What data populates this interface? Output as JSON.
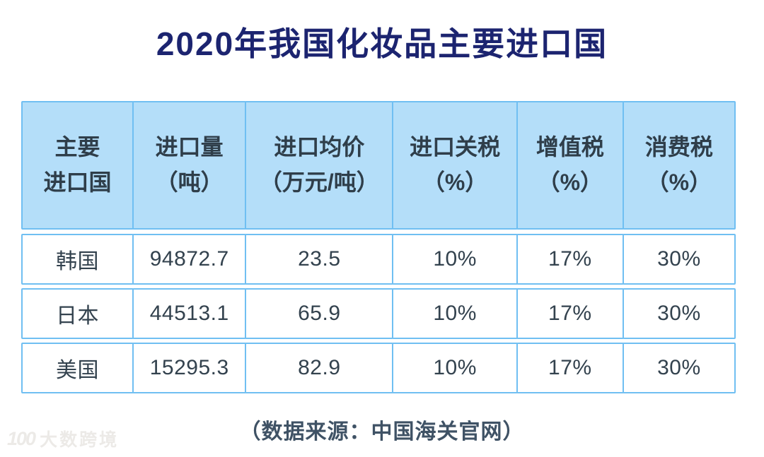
{
  "title": "2020年我国化妆品主要进口国",
  "table": {
    "columns": [
      {
        "line1": "主要",
        "line2": "进口国"
      },
      {
        "line1": "进口量",
        "line2": "（吨）"
      },
      {
        "line1": "进口均价",
        "line2": "（万元/吨）"
      },
      {
        "line1": "进口关税",
        "line2": "（%）"
      },
      {
        "line1": "增值税",
        "line2": "（%）"
      },
      {
        "line1": "消费税",
        "line2": "（%）"
      }
    ],
    "rows": [
      {
        "cells": [
          "韩国",
          "94872.7",
          "23.5",
          "10%",
          "17%",
          "30%"
        ]
      },
      {
        "cells": [
          "日本",
          "44513.1",
          "65.9",
          "10%",
          "17%",
          "30%"
        ]
      },
      {
        "cells": [
          "美国",
          "15295.3",
          "82.9",
          "10%",
          "17%",
          "30%"
        ]
      }
    ]
  },
  "footer": {
    "source_note": "（数据来源：中国海关官网）"
  },
  "watermark": {
    "logo": "100",
    "text": "大数跨境"
  },
  "colors": {
    "title_text": "#1c2470",
    "header_bg": "#b4def9",
    "border": "#70bff2",
    "cell_text": "#33424e",
    "source_text": "#3f5265",
    "watermark_text": "#eceae7",
    "background": "#ffffff"
  },
  "chart_data": {
    "type": "table",
    "title": "2020年我国化妆品主要进口国",
    "columns": [
      "主要进口国",
      "进口量（吨）",
      "进口均价（万元/吨）",
      "进口关税（%）",
      "增值税（%）",
      "消费税（%）"
    ],
    "rows": [
      [
        "韩国",
        94872.7,
        23.5,
        "10%",
        "17%",
        "30%"
      ],
      [
        "日本",
        44513.1,
        65.9,
        "10%",
        "17%",
        "30%"
      ],
      [
        "美国",
        15295.3,
        82.9,
        "10%",
        "17%",
        "30%"
      ]
    ],
    "source": "中国海关官网"
  }
}
